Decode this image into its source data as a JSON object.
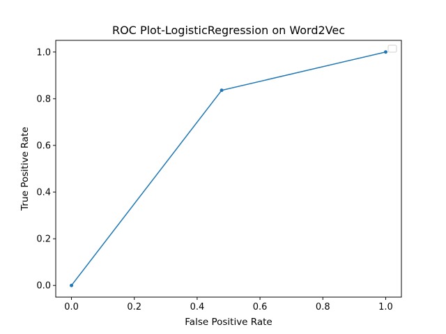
{
  "chart_data": {
    "type": "line",
    "title": "ROC Plot-LogisticRegression on Word2Vec",
    "xlabel": "False Positive Rate",
    "ylabel": "True Positive Rate",
    "xlim": [
      -0.05,
      1.05
    ],
    "ylim": [
      -0.05,
      1.05
    ],
    "xticks": [
      0.0,
      0.2,
      0.4,
      0.6,
      0.8,
      1.0
    ],
    "yticks": [
      0.0,
      0.2,
      0.4,
      0.6,
      0.8,
      1.0
    ],
    "tick_labels_x": [
      "0.0",
      "0.2",
      "0.4",
      "0.6",
      "0.8",
      "1.0"
    ],
    "tick_labels_y": [
      "0.0",
      "0.2",
      "0.4",
      "0.6",
      "0.8",
      "1.0"
    ],
    "grid": false,
    "legend": {
      "placement": "top-right",
      "entries": []
    },
    "series": [
      {
        "color": "#1f77b4",
        "marker": "dot",
        "x": [
          0.0,
          0.478,
          1.0
        ],
        "y": [
          0.0,
          0.836,
          1.0
        ]
      }
    ]
  }
}
